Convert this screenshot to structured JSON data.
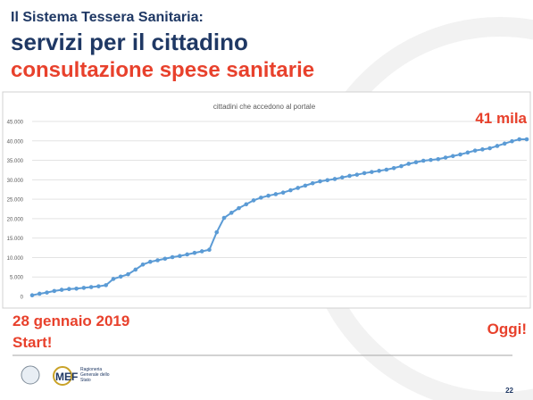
{
  "header": {
    "kicker": "Il Sistema Tessera Sanitaria:",
    "title": "servizi per il cittadino",
    "subtitle": "consultazione spese sanitarie"
  },
  "chart_data": {
    "type": "line",
    "title": "cittadini che accedono al portale",
    "color": "#5b9bd5",
    "grid": true,
    "values": [
      300,
      700,
      1000,
      1400,
      1700,
      1900,
      2000,
      2200,
      2400,
      2600,
      2900,
      4500,
      5100,
      5700,
      6900,
      8200,
      8900,
      9300,
      9700,
      10100,
      10400,
      10800,
      11200,
      11600,
      12000,
      16500,
      20200,
      21500,
      22700,
      23700,
      24700,
      25400,
      25900,
      26300,
      26700,
      27300,
      27900,
      28500,
      29100,
      29600,
      29900,
      30200,
      30600,
      31000,
      31300,
      31700,
      32000,
      32300,
      32600,
      33000,
      33500,
      34100,
      34500,
      34900,
      35100,
      35300,
      35700,
      36100,
      36500,
      37000,
      37500,
      37800,
      38100,
      38700,
      39300,
      39900,
      40400,
      40400
    ],
    "ylim": [
      0,
      45000
    ],
    "yticks": [
      0,
      {
        "value": 5000,
        "label": "5.000"
      },
      {
        "value": 10000,
        "label": "10.000"
      },
      {
        "value": 15000,
        "label": "15.000"
      },
      {
        "value": 20000,
        "label": "20.000"
      },
      {
        "value": 25000,
        "label": "25.000"
      },
      {
        "value": 30000,
        "label": "30.000"
      },
      {
        "value": 35000,
        "label": "35.000"
      },
      {
        "value": 40000,
        "label": "40.000"
      },
      {
        "value": 45000,
        "label": "45.000"
      }
    ]
  },
  "annotations": {
    "current": "41 mila",
    "start_date": "28 gennaio 2019",
    "start": "Start!",
    "today": "Oggi!"
  },
  "footer": {
    "logo": "MEF",
    "agency": "Ragioneria Generale dello Stato",
    "page": "22"
  }
}
